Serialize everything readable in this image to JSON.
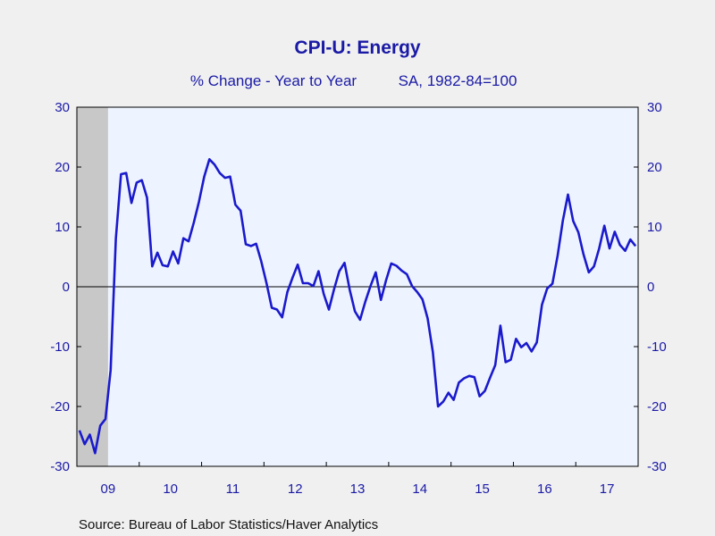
{
  "chart_data": {
    "type": "line",
    "title": "CPI-U: Energy",
    "subtitle": "% Change - Year to Year",
    "subtitle_note": "SA, 1982-84=100",
    "source": "Source:  Bureau of Labor Statistics/Haver Analytics",
    "x_start": "2009-01",
    "x_end": "2017-12",
    "ylim": [
      -30,
      30
    ],
    "yticks": [
      -30,
      -20,
      -10,
      0,
      10,
      20,
      30
    ],
    "xticks": [
      {
        "label": "09",
        "year": 2009
      },
      {
        "label": "10",
        "year": 2010
      },
      {
        "label": "11",
        "year": 2011
      },
      {
        "label": "12",
        "year": 2012
      },
      {
        "label": "13",
        "year": 2013
      },
      {
        "label": "14",
        "year": 2014
      },
      {
        "label": "15",
        "year": 2015
      },
      {
        "label": "16",
        "year": 2016
      },
      {
        "label": "17",
        "year": 2017
      }
    ],
    "recession": {
      "start": "2009-01",
      "end": "2009-06"
    },
    "grid": false,
    "zero_line": true,
    "colors": {
      "line": "#1a1acc",
      "plot_bg": "#eef4ff",
      "recession": "#c8c8c8",
      "text": "#1a1aa6"
    },
    "series": [
      {
        "name": "",
        "start": "2009-01",
        "frequency": "monthly",
        "values": [
          -24.0,
          -26.3,
          -24.7,
          -27.8,
          -23.2,
          -22.1,
          -13.9,
          8.0,
          18.8,
          19.0,
          14.0,
          17.4,
          17.8,
          14.9,
          3.4,
          5.7,
          3.6,
          3.4,
          5.9,
          3.9,
          8.1,
          7.6,
          10.7,
          14.2,
          18.4,
          21.3,
          20.4,
          19.0,
          18.2,
          18.4,
          13.7,
          12.7,
          7.1,
          6.8,
          7.2,
          4.2,
          0.6,
          -3.5,
          -3.8,
          -5.1,
          -0.9,
          1.5,
          3.7,
          0.6,
          0.6,
          0.1,
          2.6,
          -1.2,
          -3.8,
          -0.4,
          2.6,
          4.0,
          -0.5,
          -4.1,
          -5.5,
          -2.5,
          0.1,
          2.4,
          -2.2,
          1.1,
          3.9,
          3.5,
          2.7,
          2.1,
          0.1,
          -0.9,
          -2.1,
          -5.3,
          -10.9,
          -20.0,
          -19.2,
          -17.7,
          -18.9,
          -16.0,
          -15.3,
          -14.9,
          -15.1,
          -18.3,
          -17.4,
          -15.2,
          -13.1,
          -6.5,
          -12.6,
          -12.2,
          -8.7,
          -10.1,
          -9.4,
          -10.8,
          -9.3,
          -3.0,
          -0.3,
          0.5,
          5.2,
          11.0,
          15.4,
          11.0,
          9.1,
          5.4,
          2.4,
          3.4,
          6.4,
          10.2,
          6.4,
          9.2,
          7.0,
          6.0,
          7.9,
          6.8
        ]
      }
    ]
  }
}
